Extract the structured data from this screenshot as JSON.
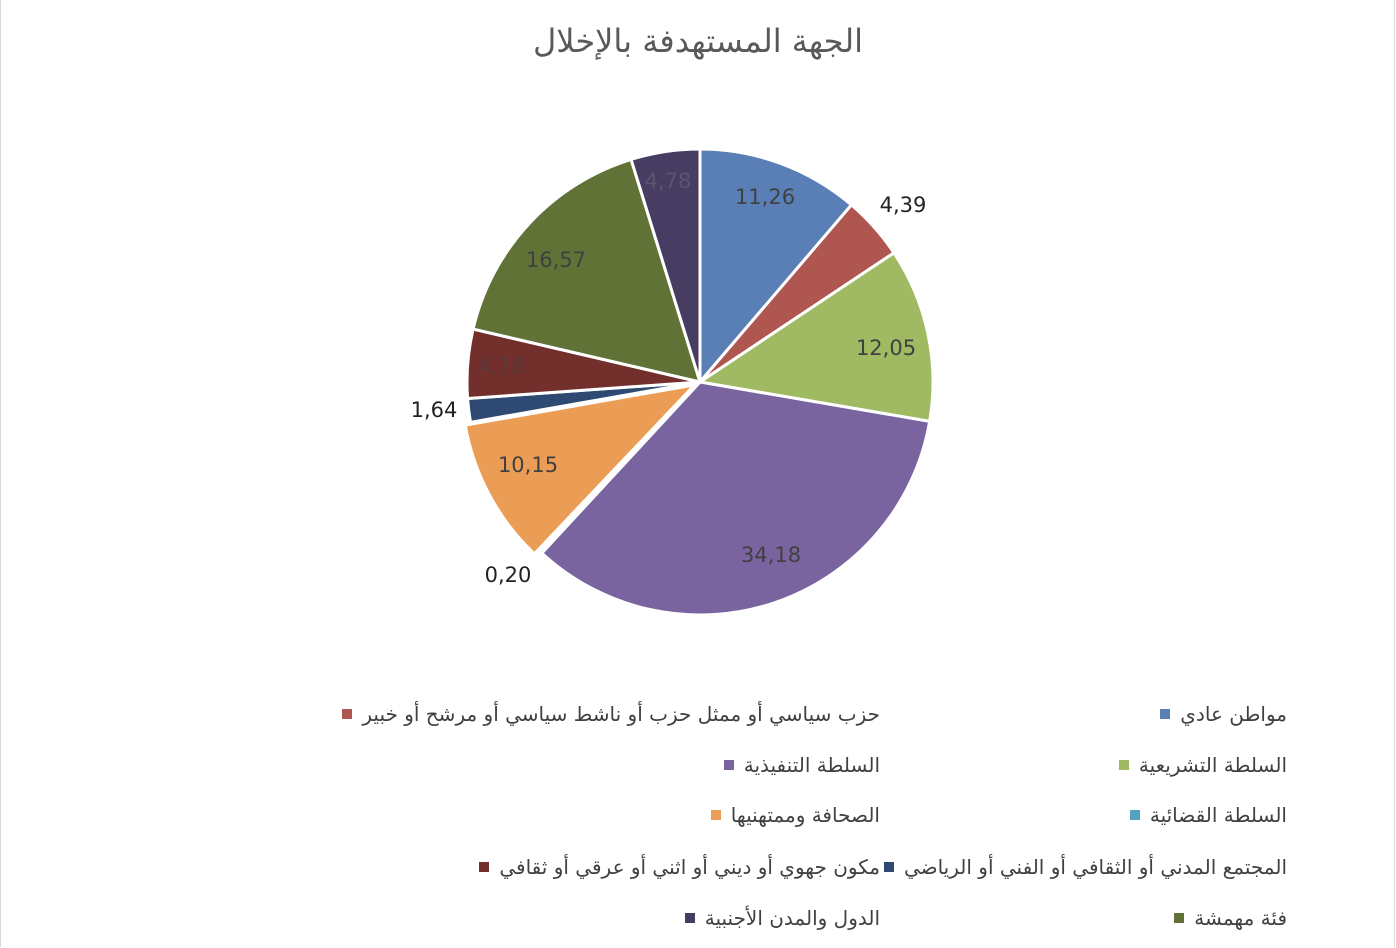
{
  "chart_data": {
    "type": "pie",
    "title": "الجهة المستهدفة بالإخلال",
    "slices": [
      {
        "label": "مواطن عادي",
        "value": 11.26,
        "display": "11,26",
        "color": "#5a7fb7",
        "label_color": "#404040"
      },
      {
        "label": "حزب سياسي أو ممثل حزب أو ناشط سياسي أو مرشح أو خبير",
        "value": 4.39,
        "display": "4,39",
        "color": "#b05650",
        "label_color": "#222222"
      },
      {
        "label": "السلطة التشريعية",
        "value": 12.05,
        "display": "12,05",
        "color": "#9fba63",
        "label_color": "#404040"
      },
      {
        "label": "السلطة التنفيذية",
        "value": 34.18,
        "display": "34,18",
        "color": "#7a64a0",
        "label_color": "#404040"
      },
      {
        "label": "السلطة القضائية",
        "value": 0.2,
        "display": "0,20",
        "color": "#52a3c0",
        "label_color": "#222222"
      },
      {
        "label": "الصحافة وممتهنيها",
        "value": 10.15,
        "display": "10,15",
        "color": "#ec9d55",
        "label_color": "#404040"
      },
      {
        "label": "المجتمع المدني أو الثقافي أو الفني أو الرياضي",
        "value": 1.64,
        "display": "1,64",
        "color": "#2e4a73",
        "label_color": "#222222"
      },
      {
        "label": "مكون جهوي أو ديني أو اثني أو عرقي أو ثقافي",
        "value": 4.78,
        "display": "4,78",
        "color": "#722f2c",
        "label_color": "#5a3a3a"
      },
      {
        "label": "فئة مهمشة",
        "value": 16.57,
        "display": "16,57",
        "color": "#617236",
        "label_color": "#404040"
      },
      {
        "label": "الدول والمدن الأجنبية",
        "value": 4.78,
        "display": "4,78",
        "color": "#473d62",
        "label_color": "#5a5570"
      }
    ],
    "legend_position": "bottom"
  }
}
